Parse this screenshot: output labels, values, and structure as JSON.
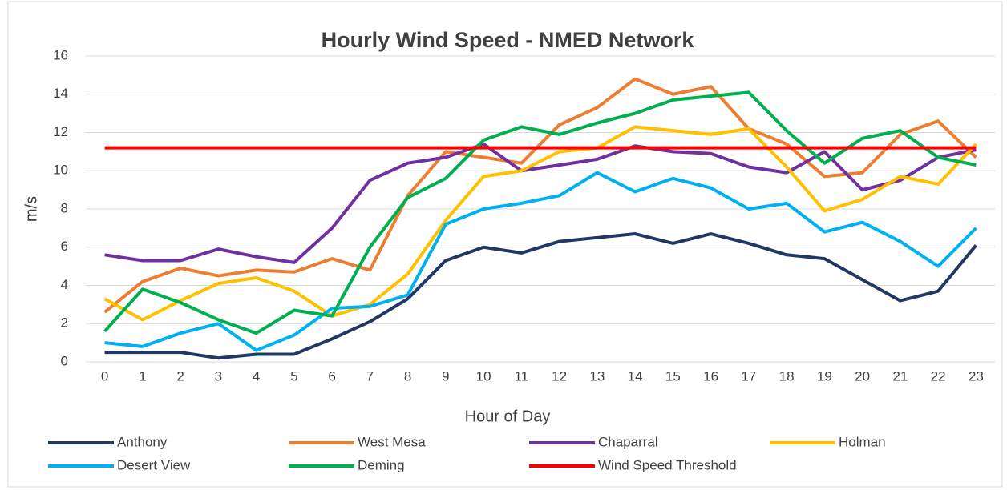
{
  "chart_data": {
    "type": "line",
    "title": "Hourly Wind Speed - NMED Network",
    "x_label": "Hour of Day",
    "y_label": "m/s",
    "categories": [
      "0",
      "1",
      "2",
      "3",
      "4",
      "5",
      "6",
      "7",
      "8",
      "9",
      "10",
      "11",
      "12",
      "13",
      "14",
      "15",
      "16",
      "17",
      "18",
      "19",
      "20",
      "21",
      "22",
      "23"
    ],
    "ylim": [
      0,
      16
    ],
    "yticks": [
      0,
      2,
      4,
      6,
      8,
      10,
      12,
      14,
      16
    ],
    "grid": true,
    "legend": "bottom",
    "series": [
      {
        "name": "Anthony",
        "color": "#203864",
        "values": [
          0.5,
          0.5,
          0.5,
          0.2,
          0.4,
          0.4,
          1.2,
          2.1,
          3.3,
          5.3,
          6.0,
          5.7,
          6.3,
          6.5,
          6.7,
          6.2,
          6.7,
          6.2,
          5.6,
          5.4,
          4.3,
          3.2,
          3.7,
          6.1
        ]
      },
      {
        "name": "West Mesa",
        "color": "#ed7d31",
        "values": [
          2.6,
          4.2,
          4.9,
          4.5,
          4.8,
          4.7,
          5.4,
          4.8,
          8.7,
          11.0,
          10.7,
          10.4,
          12.4,
          13.3,
          14.8,
          14.0,
          14.4,
          12.2,
          11.4,
          9.7,
          9.9,
          11.9,
          12.6,
          10.7
        ]
      },
      {
        "name": "Chaparral",
        "color": "#7030a0",
        "values": [
          5.6,
          5.3,
          5.3,
          5.9,
          5.5,
          5.2,
          7.0,
          9.5,
          10.4,
          10.7,
          11.4,
          10.0,
          10.3,
          10.6,
          11.3,
          11.0,
          10.9,
          10.2,
          9.9,
          11.0,
          9.0,
          9.5,
          10.7,
          11.1
        ]
      },
      {
        "name": "Holman",
        "color": "#ffc000",
        "values": [
          3.3,
          2.2,
          3.2,
          4.1,
          4.4,
          3.7,
          2.4,
          3.0,
          4.6,
          7.4,
          9.7,
          10.0,
          11.0,
          11.2,
          12.3,
          12.1,
          11.9,
          12.2,
          10.2,
          7.9,
          8.5,
          9.7,
          9.3,
          11.4
        ]
      },
      {
        "name": "Desert View",
        "color": "#00b0f0",
        "values": [
          1.0,
          0.8,
          1.5,
          2.0,
          0.6,
          1.4,
          2.8,
          2.9,
          3.5,
          7.2,
          8.0,
          8.3,
          8.7,
          9.9,
          8.9,
          9.6,
          9.1,
          8.0,
          8.3,
          6.8,
          7.3,
          6.3,
          5.0,
          7.0
        ]
      },
      {
        "name": "Deming",
        "color": "#00b050",
        "values": [
          1.6,
          3.8,
          3.1,
          2.2,
          1.5,
          2.7,
          2.4,
          6.0,
          8.6,
          9.6,
          11.6,
          12.3,
          11.9,
          12.5,
          13.0,
          13.7,
          13.9,
          14.1,
          12.1,
          10.4,
          11.7,
          12.1,
          10.7,
          10.3
        ]
      },
      {
        "name": "Wind Speed Threshold",
        "color": "#ff0000",
        "values": [
          11.2,
          11.2,
          11.2,
          11.2,
          11.2,
          11.2,
          11.2,
          11.2,
          11.2,
          11.2,
          11.2,
          11.2,
          11.2,
          11.2,
          11.2,
          11.2,
          11.2,
          11.2,
          11.2,
          11.2,
          11.2,
          11.2,
          11.2,
          11.2
        ]
      }
    ]
  }
}
